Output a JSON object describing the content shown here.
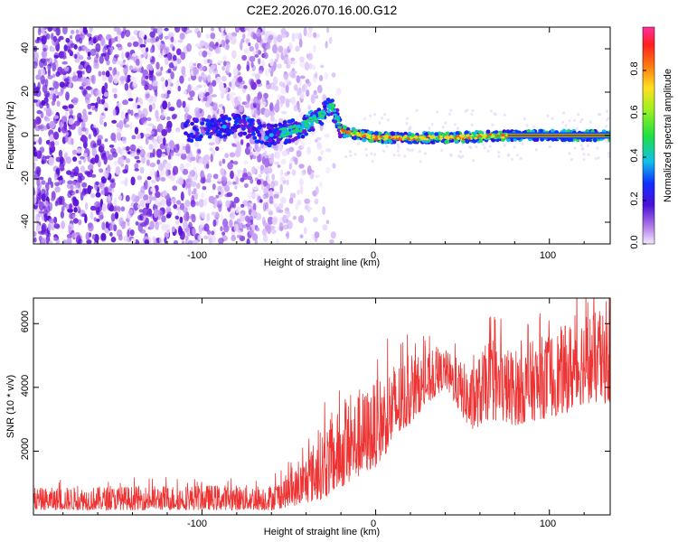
{
  "title": "C2E2.2026.070.16.00.G12",
  "chart_data": [
    {
      "type": "heatmap",
      "xlabel": "Height of straight line (km)",
      "ylabel": "Frequency (Hz)",
      "xlim": [
        -197,
        135
      ],
      "ylim": [
        -50,
        50
      ],
      "xticks": [
        "-100",
        "0",
        "100"
      ],
      "yticks": [
        "40",
        "20",
        "0",
        "-20",
        "-40"
      ],
      "colorbar": {
        "label": "Normalized spectral amplitude",
        "range": [
          0,
          1
        ],
        "ticks": [
          "0.0",
          "0.2",
          "0.4",
          "0.6",
          "0.8"
        ]
      },
      "signal_trace": [
        {
          "x": -110,
          "y": 2
        },
        {
          "x": -80,
          "y": 5
        },
        {
          "x": -60,
          "y": 0
        },
        {
          "x": -45,
          "y": 3
        },
        {
          "x": -30,
          "y": 10
        },
        {
          "x": -25,
          "y": 14
        },
        {
          "x": -20,
          "y": 2
        },
        {
          "x": 0,
          "y": -1
        },
        {
          "x": 40,
          "y": -1
        },
        {
          "x": 80,
          "y": 0
        },
        {
          "x": 135,
          "y": 0
        }
      ]
    },
    {
      "type": "line",
      "xlabel": "Height of straight line (km)",
      "ylabel": "SNR (10 * v/v)",
      "xlim": [
        -197,
        135
      ],
      "ylim": [
        0,
        6800
      ],
      "xticks": [
        "-100",
        "0",
        "100"
      ],
      "yticks": [
        "6000",
        "4000",
        "2000"
      ],
      "series": [
        {
          "name": "SNR",
          "color": "#ee3333",
          "envelope": [
            {
              "x": -197,
              "low": 150,
              "high": 850
            },
            {
              "x": -150,
              "low": 150,
              "high": 900
            },
            {
              "x": -100,
              "low": 150,
              "high": 950
            },
            {
              "x": -60,
              "low": 150,
              "high": 950
            },
            {
              "x": -45,
              "low": 300,
              "high": 1500
            },
            {
              "x": -30,
              "low": 500,
              "high": 2800
            },
            {
              "x": -15,
              "low": 1000,
              "high": 3600
            },
            {
              "x": 0,
              "low": 1500,
              "high": 4200
            },
            {
              "x": 10,
              "low": 2200,
              "high": 4800
            },
            {
              "x": 25,
              "low": 3200,
              "high": 5000
            },
            {
              "x": 40,
              "low": 4000,
              "high": 5200
            },
            {
              "x": 55,
              "low": 2600,
              "high": 4600
            },
            {
              "x": 65,
              "low": 3000,
              "high": 5500
            },
            {
              "x": 80,
              "low": 2800,
              "high": 5200
            },
            {
              "x": 95,
              "low": 3000,
              "high": 5600
            },
            {
              "x": 110,
              "low": 3200,
              "high": 6000
            },
            {
              "x": 120,
              "low": 3500,
              "high": 6500
            },
            {
              "x": 135,
              "low": 3500,
              "high": 6200
            }
          ]
        }
      ]
    }
  ]
}
